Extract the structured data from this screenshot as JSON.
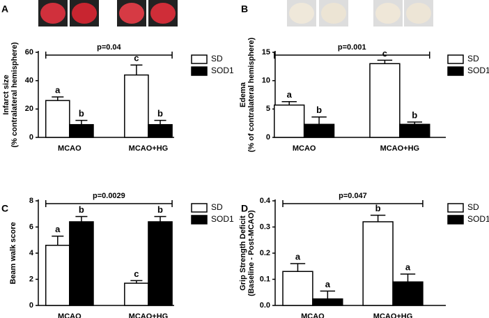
{
  "chart_data": [
    {
      "type": "bar",
      "panel": "A",
      "ylabel": [
        "Infarct size",
        "(% contralateral hemisphere)"
      ],
      "annotation": "p=0.04",
      "categories": [
        "MCAO",
        "MCAO+HG"
      ],
      "ylim": [
        0,
        60
      ],
      "yticks": [
        0,
        20,
        40,
        60
      ],
      "series": [
        {
          "name": "SD",
          "color": "#ffffff",
          "values": [
            26,
            44
          ],
          "errors": [
            2.5,
            7
          ],
          "labels": [
            "a",
            "c"
          ]
        },
        {
          "name": "SOD1",
          "color": "#000000",
          "values": [
            9,
            9
          ],
          "errors": [
            3,
            3
          ],
          "labels": [
            "b",
            "b"
          ]
        }
      ]
    },
    {
      "type": "bar",
      "panel": "B",
      "ylabel": [
        "Edema",
        "(% of contralateral hemisphere)"
      ],
      "annotation": "p=0.001",
      "categories": [
        "MCAO",
        "MCAO+HG"
      ],
      "ylim": [
        0,
        15
      ],
      "yticks": [
        0,
        5,
        10,
        15
      ],
      "series": [
        {
          "name": "SD",
          "color": "#ffffff",
          "values": [
            5.7,
            13.0
          ],
          "errors": [
            0.6,
            0.6
          ],
          "labels": [
            "a",
            "c"
          ]
        },
        {
          "name": "SOD1",
          "color": "#000000",
          "values": [
            2.3,
            2.3
          ],
          "errors": [
            1.3,
            0.4
          ],
          "labels": [
            "b",
            "b"
          ]
        }
      ]
    },
    {
      "type": "bar",
      "panel": "C",
      "ylabel": [
        "Beam walk score"
      ],
      "annotation": "p=0.0029",
      "categories": [
        "MCAO",
        "MCAO+HG"
      ],
      "ylim": [
        0,
        8
      ],
      "yticks": [
        0,
        2,
        4,
        6,
        8
      ],
      "series": [
        {
          "name": "SD",
          "color": "#ffffff",
          "values": [
            4.6,
            1.7
          ],
          "errors": [
            0.7,
            0.2
          ],
          "labels": [
            "a",
            "c"
          ]
        },
        {
          "name": "SOD1",
          "color": "#000000",
          "values": [
            6.4,
            6.4
          ],
          "errors": [
            0.4,
            0.4
          ],
          "labels": [
            "b",
            "b"
          ]
        }
      ]
    },
    {
      "type": "bar",
      "panel": "D",
      "ylabel": [
        "Grip Strength Deficit",
        "(Baseline - Post-MCAO)"
      ],
      "annotation": "p=0.047",
      "categories": [
        "MCAO",
        "MCAO+HG"
      ],
      "ylim": [
        0,
        0.4
      ],
      "yticks": [
        {
          "value": 0,
          "label": "0.0"
        },
        0.1,
        0.2,
        0.3,
        0.4
      ],
      "series": [
        {
          "name": "SD",
          "color": "#ffffff",
          "values": [
            0.13,
            0.32
          ],
          "errors": [
            0.03,
            0.025
          ],
          "labels": [
            "a",
            "b"
          ]
        },
        {
          "name": "SOD1",
          "color": "#000000",
          "values": [
            0.025,
            0.09
          ],
          "errors": [
            0.03,
            0.03
          ],
          "labels": [
            "a",
            "a"
          ]
        }
      ]
    }
  ]
}
